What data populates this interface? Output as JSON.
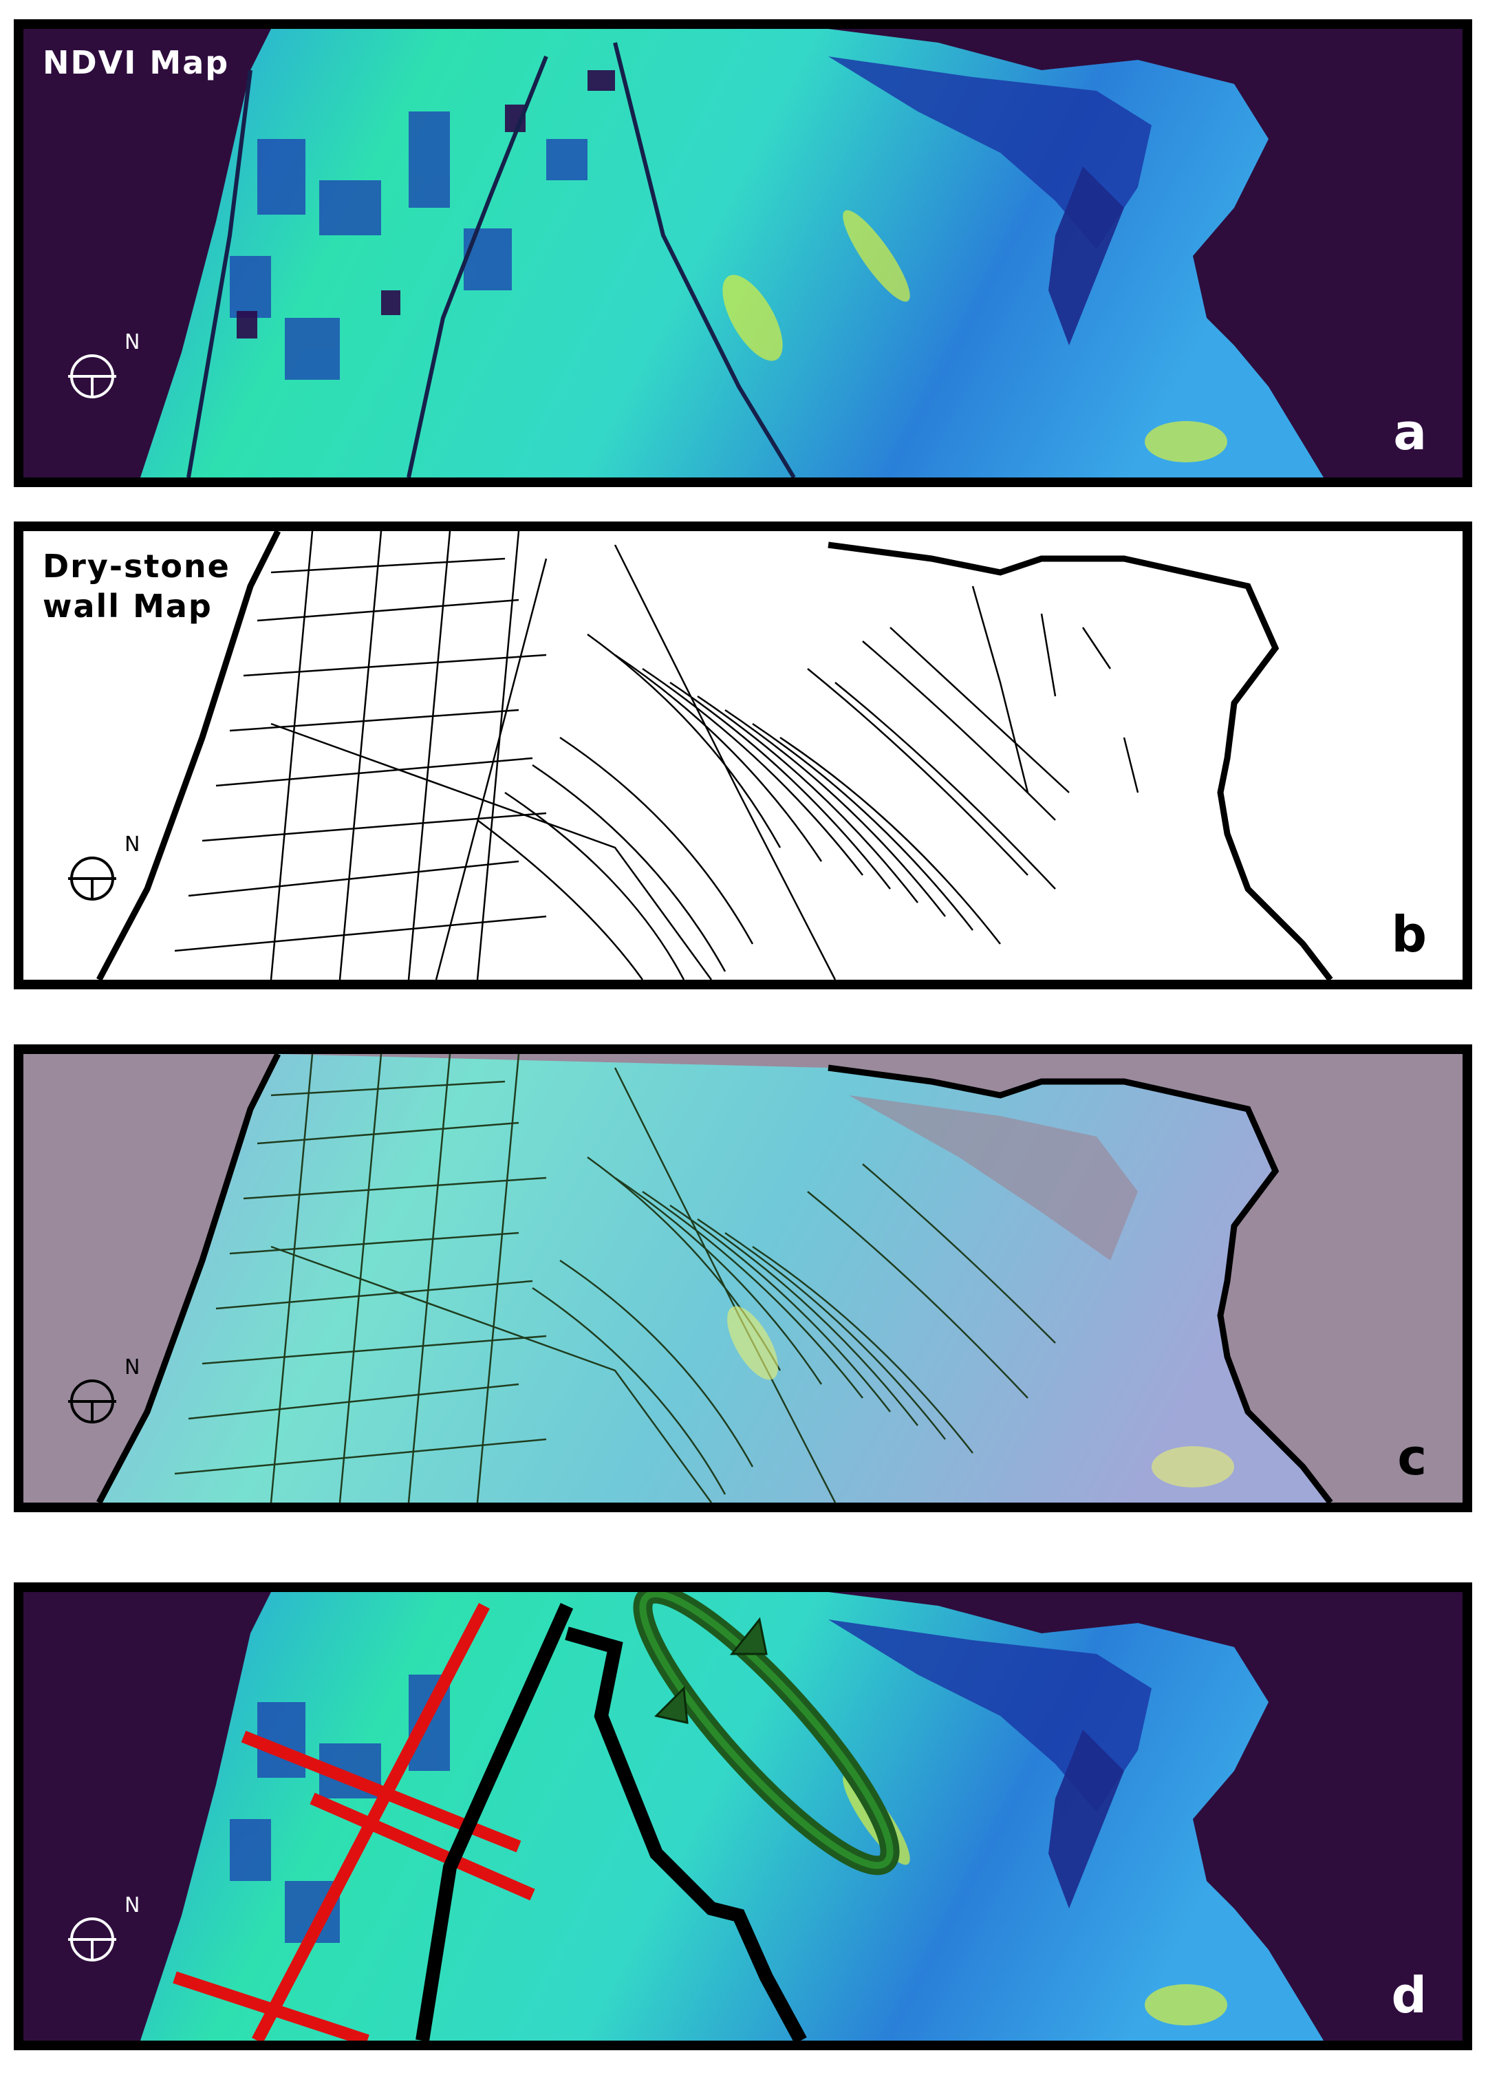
{
  "figure": {
    "panels": [
      {
        "id": "a",
        "title": "NDVI Map",
        "letter": "a",
        "north_label": "N",
        "background": "#2e0d3d",
        "text_color": "#ffffff"
      },
      {
        "id": "b",
        "title_line1": "Dry-stone",
        "title_line2": "wall Map",
        "letter": "b",
        "north_label": "N",
        "background": "#ffffff",
        "text_color": "#000000"
      },
      {
        "id": "c",
        "letter": "c",
        "north_label": "N",
        "background": "#9a8a9c",
        "text_color": "#000000"
      },
      {
        "id": "d",
        "letter": "d",
        "north_label": "N",
        "background": "#2e0d3d",
        "text_color": "#ffffff"
      }
    ],
    "colors": {
      "ndvi_low": "#1a3aa8",
      "ndvi_mid": "#2aa8e8",
      "ndvi_high": "#34e0a8",
      "ndvi_peak": "#c8f040",
      "wall_lines": "#000000",
      "overlay_lines": "#1f3d1f",
      "red_grid": "#e01010",
      "black_path": "#000000",
      "green_ellipse": "#1e5a1e"
    },
    "icons": [
      "north-arrow-icon"
    ]
  }
}
